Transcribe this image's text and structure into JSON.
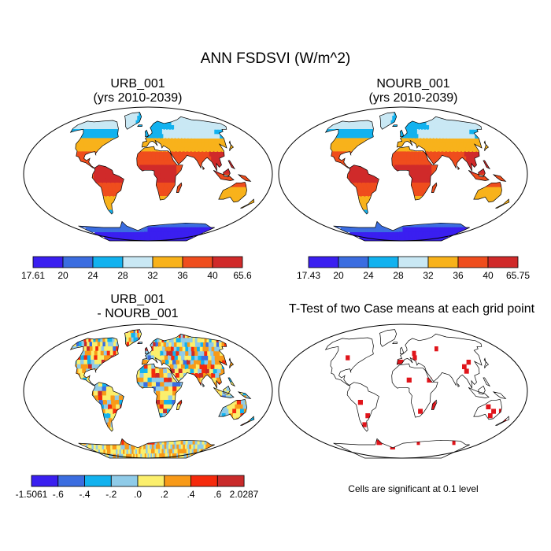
{
  "title": "ANN FSDSVI (W/m^2)",
  "panels": [
    {
      "id": "urb",
      "title_line1": "URB_001",
      "title_line2": "(yrs 2010-2039)",
      "colorbar": {
        "colors": [
          "#3a1ff0",
          "#3b6de0",
          "#12b2ef",
          "#c9e8f4",
          "#f8b21b",
          "#ef4d1d",
          "#d02a2a"
        ],
        "labels": [
          "17.61",
          "20",
          "24",
          "28",
          "32",
          "36",
          "40",
          "65.6"
        ]
      }
    },
    {
      "id": "nourb",
      "title_line1": "NOURB_001",
      "title_line2": "(yrs 2010-2039)",
      "colorbar": {
        "colors": [
          "#3a1ff0",
          "#3b6de0",
          "#12b2ef",
          "#c9e8f4",
          "#f8b21b",
          "#ef4d1d",
          "#d02a2a"
        ],
        "labels": [
          "17.43",
          "20",
          "24",
          "28",
          "32",
          "36",
          "40",
          "65.75"
        ]
      }
    },
    {
      "id": "diff",
      "title_line1": "URB_001",
      "title_line2": "- NOURB_001",
      "colorbar": {
        "colors": [
          "#3a1ff0",
          "#3b6de0",
          "#12b2ef",
          "#8fcbe8",
          "#fbef6c",
          "#f89a18",
          "#f52a0c",
          "#c92b2b"
        ],
        "labels": [
          "-1.5061",
          "-.6",
          "-.4",
          "-.2",
          ".0",
          ".2",
          ".4",
          ".6",
          "2.0287"
        ]
      }
    },
    {
      "id": "ttest",
      "title_line1": "T-Test of two Case means at each grid point",
      "note": "Cells are significant at 0.1 level",
      "color": "#e0151b"
    }
  ]
}
